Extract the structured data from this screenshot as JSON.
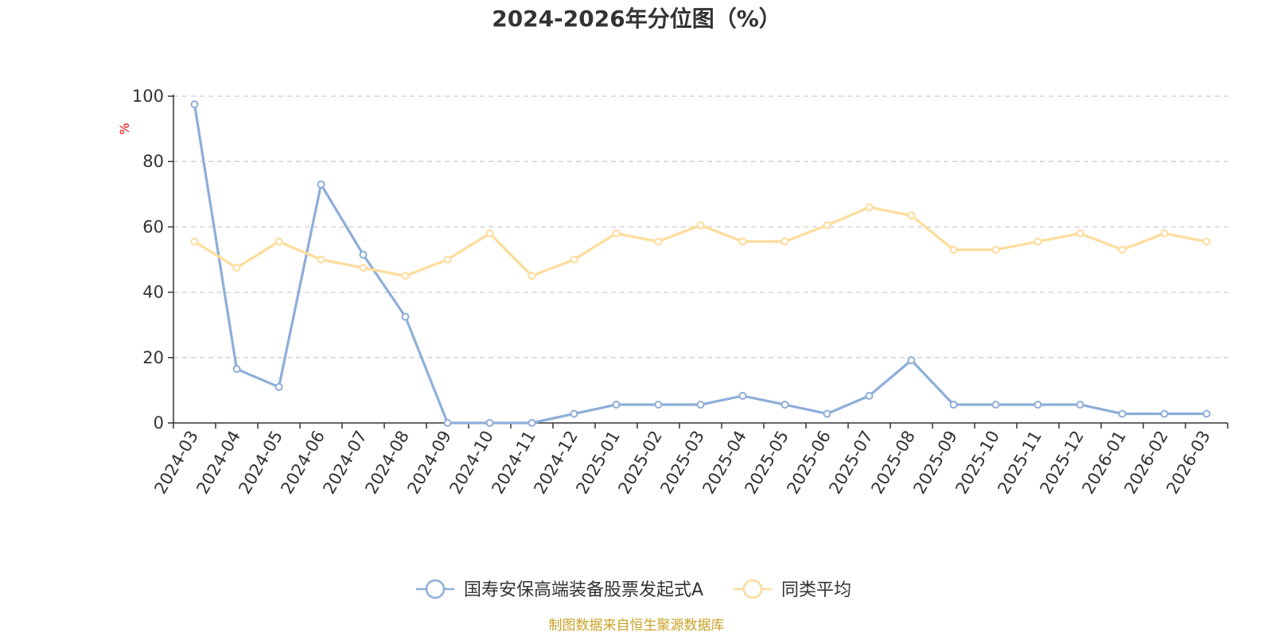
{
  "chart_data": {
    "type": "line",
    "title": "2024-2026年分位图（%）",
    "ylabel": "%",
    "ylim": [
      0,
      100
    ],
    "yticks": [
      0,
      20,
      40,
      60,
      80,
      100
    ],
    "grid": true,
    "legend_position": "bottom-center",
    "categories": [
      "2024-03",
      "2024-04",
      "2024-05",
      "2024-06",
      "2024-07",
      "2024-08",
      "2024-09",
      "2024-10",
      "2024-11",
      "2024-12",
      "2025-01",
      "2025-02",
      "2025-03",
      "2025-04",
      "2025-05",
      "2025-06",
      "2025-07",
      "2025-08",
      "2025-09",
      "2025-10",
      "2025-11",
      "2025-12",
      "2026-01",
      "2026-02",
      "2026-03"
    ],
    "series": [
      {
        "name": "国寿安保高端装备股票发起式A",
        "color": "#8eaed9",
        "values": [
          97.5,
          16.5,
          11,
          73,
          51.5,
          32.5,
          0,
          0,
          0,
          2.8,
          5.6,
          5.6,
          5.6,
          8.3,
          5.6,
          2.8,
          8.3,
          19.2,
          5.6,
          5.6,
          5.6,
          5.6,
          2.8,
          2.8,
          2.8
        ]
      },
      {
        "name": "同类平均",
        "color": "#fddc9b",
        "values": [
          55.5,
          47.5,
          55.5,
          50,
          47.5,
          45,
          50,
          58,
          45,
          50,
          58,
          55.5,
          60.5,
          55.5,
          55.5,
          60.5,
          66,
          63.5,
          53,
          53,
          55.5,
          58,
          53,
          58,
          55.5
        ]
      }
    ],
    "source_note": "制图数据来自恒生聚源数据库",
    "source_color": "#c9a227",
    "unit_color": "#ff0000"
  }
}
